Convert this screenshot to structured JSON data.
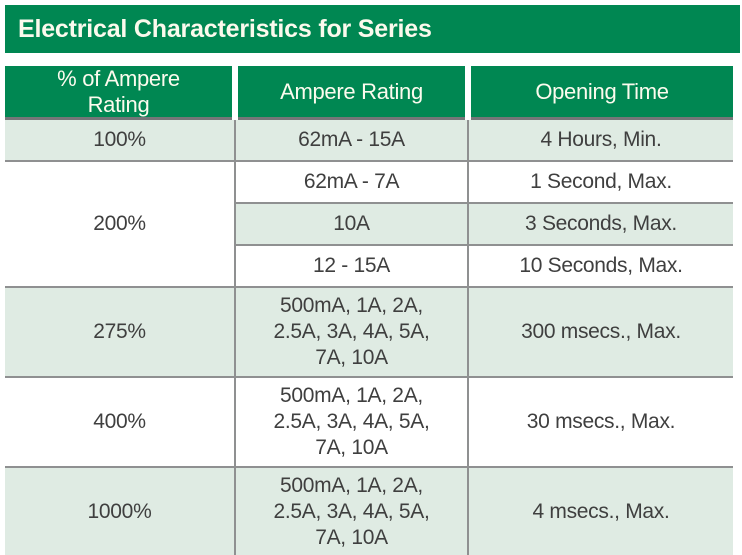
{
  "title": "Electrical Characteristics for Series",
  "colors": {
    "brand_green": "#008752",
    "row_shade_green": "#dfebe3",
    "border_gray": "#8f9091",
    "bottom_bar": "#595d58",
    "header_text": "#fcfbee",
    "body_text": "#3f3f3f"
  },
  "table": {
    "headers": [
      "% of Ampere\nRating",
      "Ampere Rating",
      "Opening Time"
    ],
    "groups": [
      {
        "rating": "100%",
        "shaded": true,
        "rows": [
          {
            "ampere": "62mA - 15A",
            "time": "4 Hours, Min.",
            "shaded": true,
            "tall": false
          }
        ]
      },
      {
        "rating": "200%",
        "shaded": false,
        "rows": [
          {
            "ampere": "62mA - 7A",
            "time": "1 Second, Max.",
            "shaded": false,
            "tall": false
          },
          {
            "ampere": "10A",
            "time": "3 Seconds, Max.",
            "shaded": true,
            "tall": false
          },
          {
            "ampere": "12 - 15A",
            "time": "10 Seconds, Max.",
            "shaded": false,
            "tall": false
          }
        ]
      },
      {
        "rating": "275%",
        "shaded": true,
        "rows": [
          {
            "ampere": "500mA, 1A, 2A,\n2.5A, 3A, 4A, 5A,\n7A, 10A",
            "time": "300 msecs., Max.",
            "shaded": true,
            "tall": true
          }
        ]
      },
      {
        "rating": "400%",
        "shaded": false,
        "rows": [
          {
            "ampere": "500mA, 1A, 2A,\n2.5A, 3A, 4A, 5A,\n7A, 10A",
            "time": "30 msecs., Max.",
            "shaded": false,
            "tall": true
          }
        ]
      },
      {
        "rating": "1000%",
        "shaded": true,
        "rows": [
          {
            "ampere": "500mA, 1A, 2A,\n2.5A, 3A, 4A, 5A,\n7A, 10A",
            "time": "4 msecs., Max.",
            "shaded": true,
            "tall": true
          }
        ]
      }
    ]
  }
}
